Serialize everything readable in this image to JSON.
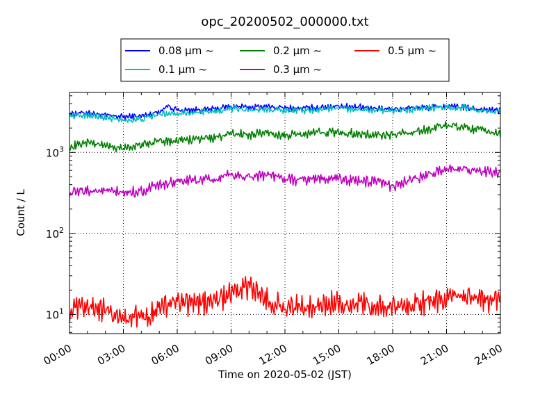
{
  "chart_data": {
    "type": "line",
    "title": "opc_20200502_000000.txt",
    "xlabel": "Time on 2020-05-02 (JST)",
    "ylabel": "Count / L",
    "yscale": "log",
    "ylim": [
      5.8,
      5500
    ],
    "xlim": [
      "2020-05-02 00:00",
      "2020-05-03 00:00"
    ],
    "grid": true,
    "legend_position": "top-center",
    "x_ticks": [
      "00:00",
      "03:00",
      "06:00",
      "09:00",
      "12:00",
      "15:00",
      "18:00",
      "21:00",
      "24:00"
    ],
    "y_ticks": [
      {
        "value": 10,
        "label": "10",
        "exp": "1"
      },
      {
        "value": 100,
        "label": "10",
        "exp": "2"
      },
      {
        "value": 1000,
        "label": "10",
        "exp": "3"
      }
    ],
    "x_hours": [
      0,
      1,
      2,
      3,
      4,
      5,
      5.5,
      6,
      7,
      8,
      9,
      10,
      11,
      12,
      13,
      14,
      15,
      16,
      17,
      18,
      19,
      20,
      21,
      22,
      23,
      24
    ],
    "series": [
      {
        "name": "0.08 μm ~",
        "color": "#0000ff",
        "noise": 0.035,
        "values": [
          3000,
          3100,
          2850,
          2750,
          2800,
          3200,
          3800,
          3300,
          3350,
          3400,
          3700,
          3600,
          3700,
          3500,
          3500,
          3600,
          3750,
          3600,
          3500,
          3450,
          3550,
          3600,
          3700,
          3600,
          3400,
          3300
        ]
      },
      {
        "name": "0.1 μm ~",
        "color": "#00bfbf",
        "noise": 0.035,
        "values": [
          2800,
          2900,
          2650,
          2500,
          2550,
          2950,
          3050,
          3050,
          3100,
          3150,
          3450,
          3350,
          3450,
          3300,
          3300,
          3400,
          3550,
          3400,
          3350,
          3300,
          3400,
          3500,
          3600,
          3550,
          3300,
          3150
        ]
      },
      {
        "name": "0.2 μm ~",
        "color": "#008000",
        "noise": 0.05,
        "values": [
          1150,
          1350,
          1200,
          1150,
          1220,
          1380,
          1400,
          1400,
          1450,
          1500,
          1700,
          1650,
          1750,
          1600,
          1650,
          1800,
          1750,
          1700,
          1600,
          1650,
          1750,
          1950,
          2150,
          2050,
          1850,
          1700
        ]
      },
      {
        "name": "0.3 μm ~",
        "color": "#bf00bf",
        "noise": 0.06,
        "values": [
          310,
          340,
          330,
          315,
          330,
          390,
          410,
          440,
          450,
          455,
          520,
          500,
          540,
          460,
          460,
          480,
          470,
          450,
          430,
          390,
          450,
          520,
          640,
          640,
          560,
          560
        ]
      },
      {
        "name": "0.5 μm ~",
        "color": "#ff0000",
        "noise": 0.13,
        "values": [
          11,
          12,
          11.5,
          9,
          9.5,
          11.5,
          13,
          14,
          13.5,
          14.5,
          18,
          22,
          15,
          12,
          12.5,
          13,
          14,
          13,
          12.5,
          12,
          13,
          14,
          15.5,
          15.5,
          15.5,
          14.5
        ]
      }
    ]
  }
}
